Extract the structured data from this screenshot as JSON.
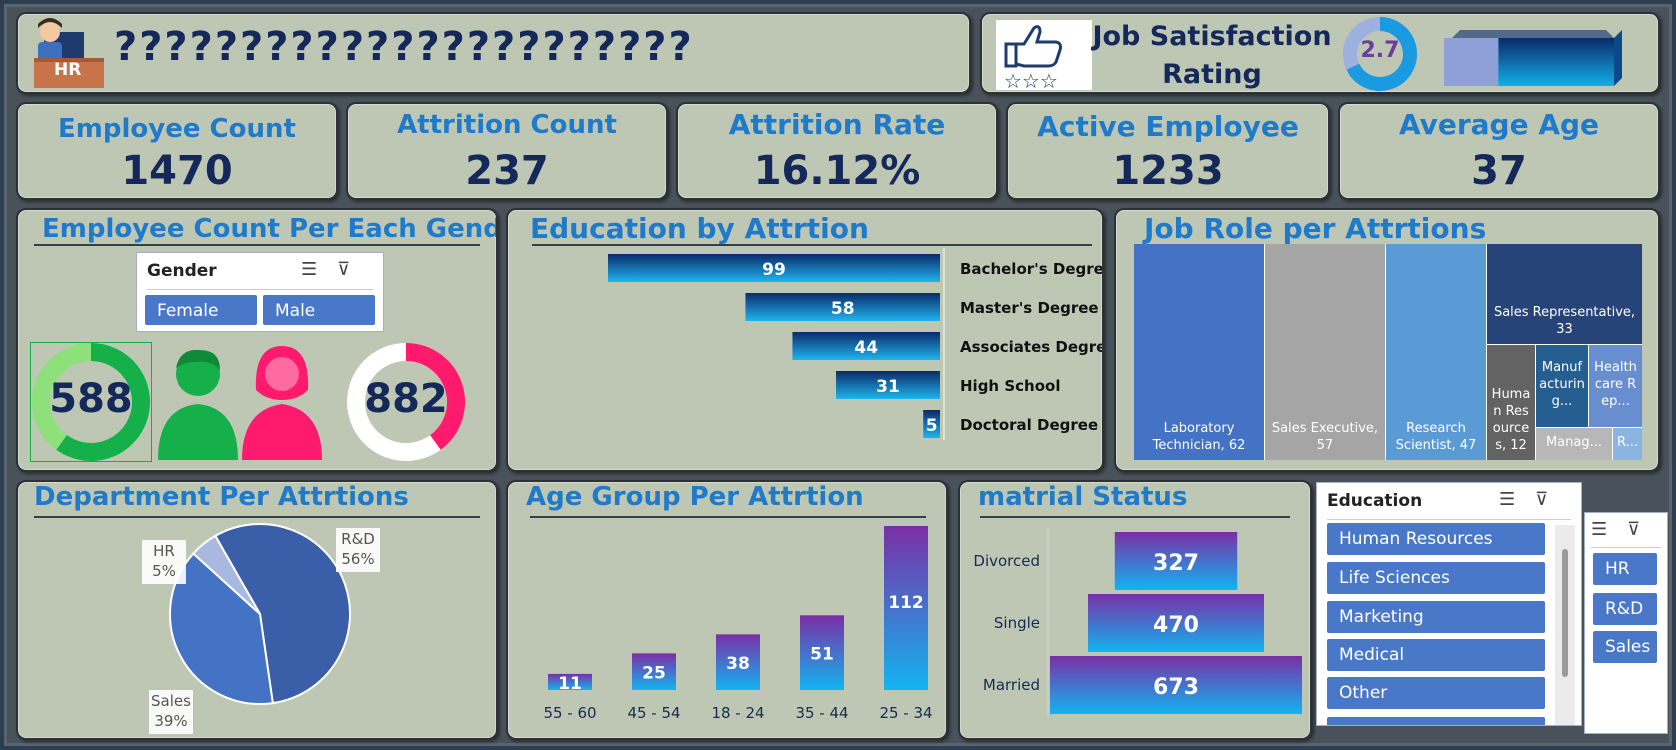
{
  "header": {
    "title": "???????????????????????",
    "hr_badge": "HR"
  },
  "job_satisfaction": {
    "label": "Job Satisfaction Rating",
    "value": "2.7",
    "rating_fraction": 0.68
  },
  "kpis": [
    {
      "label": "Employee Count",
      "value": "1470"
    },
    {
      "label": "Attrition Count",
      "value": "237"
    },
    {
      "label": "Attrition Rate",
      "value": "16.12%"
    },
    {
      "label": "Active Employee",
      "value": "1233"
    },
    {
      "label": "Average Age",
      "value": "37"
    }
  ],
  "gender": {
    "title": "Employee Count Per Each Gender",
    "slicer_title": "Gender",
    "options": [
      "Female",
      "Male"
    ],
    "male_count": "588",
    "female_count": "882",
    "male_ring_fraction": 0.6,
    "female_ring_fraction": 0.4,
    "male_color": "#16b04a",
    "female_color": "#ff1a6e"
  },
  "education_chart": {
    "title": "Education by Attrtion",
    "chart_data": {
      "type": "bar",
      "orientation": "horizontal",
      "categories": [
        "Bachelor's Degree",
        "Master's Degree",
        "Associates Degree",
        "High School",
        "Doctoral Degree"
      ],
      "values": [
        99,
        58,
        44,
        31,
        5
      ],
      "xlim": [
        0,
        99
      ]
    }
  },
  "job_role_chart": {
    "title": "Job Role per Attrtions",
    "chart_data": {
      "type": "treemap",
      "items": [
        {
          "label": "Laboratory Technician, 62",
          "value": 62,
          "color": "#4472c4"
        },
        {
          "label": "Sales Executive, 57",
          "value": 57,
          "color": "#a5a5a5"
        },
        {
          "label": "Research Scientist, 47",
          "value": 47,
          "color": "#5b9bd5"
        },
        {
          "label": "Sales Representative, 33",
          "value": 33,
          "color": "#264478"
        },
        {
          "label": "Human Resources, 12",
          "value": 12,
          "color": "#636363"
        },
        {
          "label": "Manufacturing...",
          "value": 10,
          "color": "#255e91"
        },
        {
          "label": "Healthcare Rep...",
          "value": 9,
          "color": "#698ed0"
        },
        {
          "label": "Manag...",
          "value": 5,
          "color": "#b7b7b7"
        },
        {
          "label": "R...",
          "value": 2,
          "color": "#8cb4e2"
        }
      ]
    }
  },
  "department_chart": {
    "title": "Department Per Attrtions",
    "chart_data": {
      "type": "pie",
      "categories": [
        "R&D",
        "Sales",
        "HR"
      ],
      "values": [
        56,
        39,
        5
      ],
      "labels": [
        "56%",
        "39%",
        "5%"
      ],
      "colors": [
        "#3a5fa8",
        "#4472c4",
        "#a9b8e0"
      ]
    }
  },
  "age_chart": {
    "title": "Age Group Per Attrtion",
    "chart_data": {
      "type": "bar",
      "categories": [
        "55 - 60",
        "45 - 54",
        "18 - 24",
        "35 - 44",
        "25 - 34"
      ],
      "values": [
        11,
        25,
        38,
        51,
        112
      ],
      "ylim": [
        0,
        112
      ]
    }
  },
  "marital_chart": {
    "title": "matrial Status",
    "chart_data": {
      "type": "bar",
      "orientation": "horizontal-centered",
      "categories": [
        "Divorced",
        "Single",
        "Married"
      ],
      "values": [
        327,
        470,
        673
      ],
      "xlim": [
        0,
        673
      ]
    }
  },
  "education_slicer": {
    "title": "Education",
    "options": [
      "Human Resources",
      "Life Sciences",
      "Marketing",
      "Medical",
      "Other"
    ]
  },
  "department_slicer": {
    "options": [
      "HR",
      "R&D",
      "Sales"
    ]
  }
}
